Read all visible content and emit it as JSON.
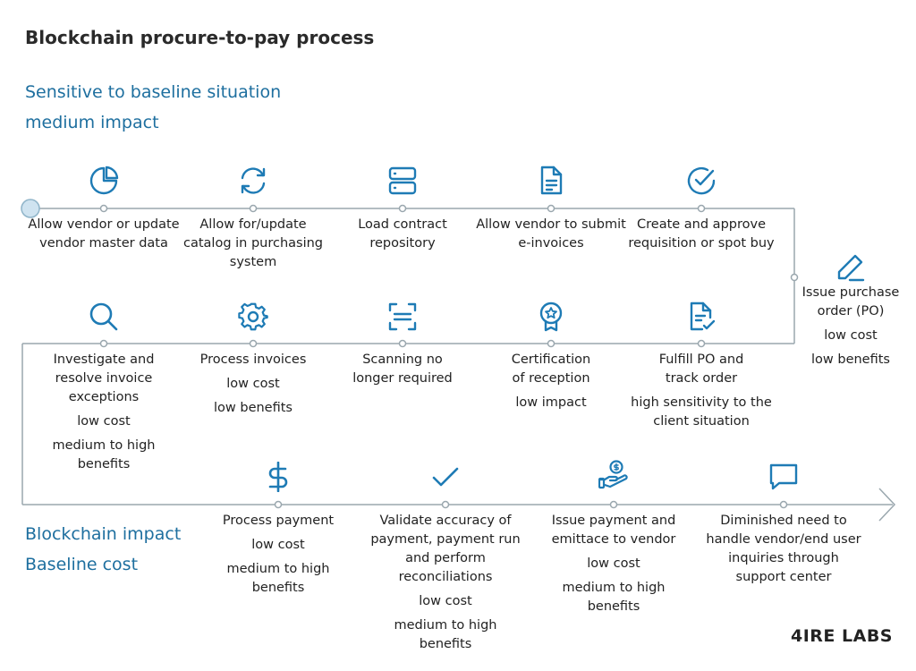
{
  "title": "Blockchain procure-to-pay process",
  "legend": {
    "top": [
      "Sensitive to baseline situation",
      "medium impact"
    ],
    "bottom": [
      "Blockchain impact",
      "Baseline cost"
    ]
  },
  "steps": [
    {
      "icon": "pie-chart-icon",
      "label": "Allow vendor or update vendor master data",
      "notes": []
    },
    {
      "icon": "refresh-icon",
      "label": "Allow for/update catalog in purchasing system",
      "notes": []
    },
    {
      "icon": "server-icon",
      "label": "Load contract repository",
      "notes": []
    },
    {
      "icon": "document-icon",
      "label": "Allow vendor to submit e-invoices",
      "notes": []
    },
    {
      "icon": "check-circle-icon",
      "label": "Create and approve requisition or spot buy",
      "notes": []
    },
    {
      "icon": "pen-icon",
      "label": "Issue purchase order (PO)",
      "notes": [
        "low cost",
        "low benefits"
      ]
    },
    {
      "icon": "document-check-icon",
      "label": "Fulfill PO and track order",
      "notes": [
        "high sensitivity to the client situation"
      ]
    },
    {
      "icon": "award-icon",
      "label": "Certification of reception",
      "notes": [
        "low impact"
      ]
    },
    {
      "icon": "scan-icon",
      "label": "Scanning no longer required",
      "notes": []
    },
    {
      "icon": "gear-icon",
      "label": "Process invoices",
      "notes": [
        "low cost",
        "low benefits"
      ]
    },
    {
      "icon": "search-icon",
      "label": "Investigate and resolve invoice exceptions",
      "notes": [
        "low cost",
        "medium to high benefits"
      ]
    },
    {
      "icon": "dollar-icon",
      "label": "Process payment",
      "notes": [
        "low cost",
        "medium to high benefits"
      ]
    },
    {
      "icon": "checkmark-icon",
      "label": "Validate accuracy of payment, payment run and perform reconciliations",
      "notes": [
        "low cost",
        "medium to high benefits"
      ]
    },
    {
      "icon": "hand-coin-icon",
      "label": "Issue payment and emittace to vendor",
      "notes": [
        "low cost",
        "medium to high benefits"
      ]
    },
    {
      "icon": "chat-icon",
      "label": "Diminished need to handle vendor/end user inquiries through support center",
      "notes": []
    }
  ],
  "logo": "4IRE LABS",
  "colors": {
    "accent": "#1e7bb5",
    "line": "#9aa7ae",
    "text": "#222222",
    "legend": "#1e6f9f"
  }
}
